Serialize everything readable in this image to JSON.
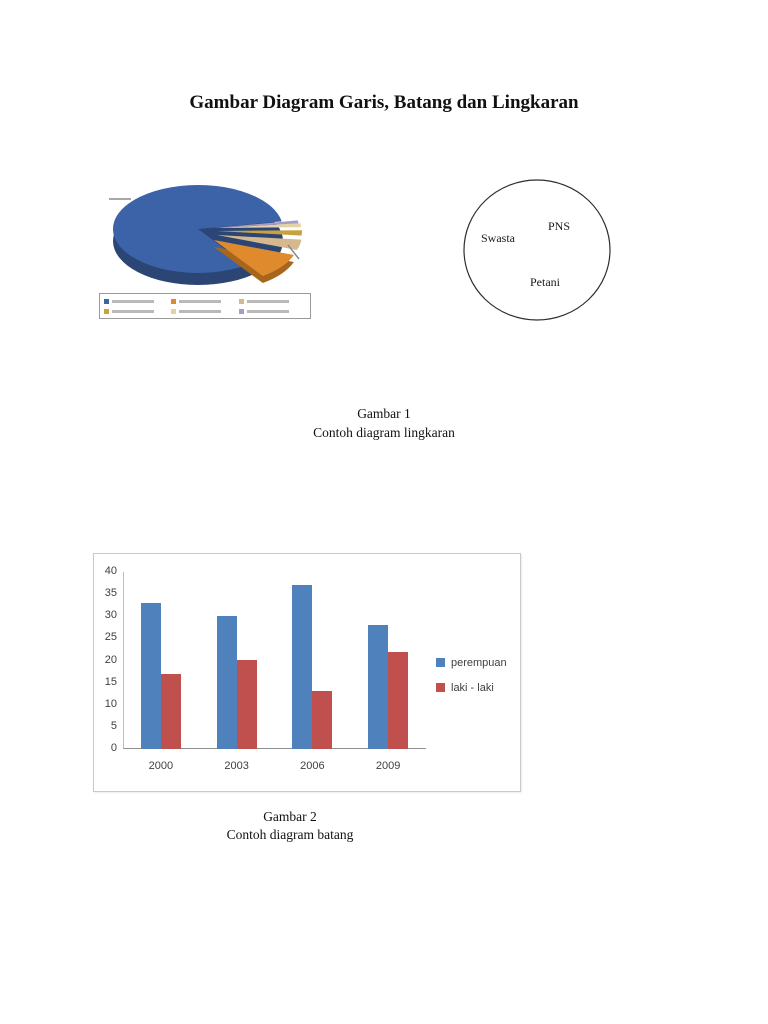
{
  "page": {
    "title": "Gambar Diagram Garis, Batang dan Lingkaran"
  },
  "figure1": {
    "caption_line1": "Gambar 1",
    "caption_line2": "Contoh diagram lingkaran",
    "venn": {
      "labels": [
        "PNS",
        "Swasta",
        "Petani"
      ]
    }
  },
  "figure2": {
    "caption_line1": "Gambar 2",
    "caption_line2": "Contoh diagram batang"
  },
  "chart_data": [
    {
      "type": "pie",
      "title": "",
      "style": "3d-exploded",
      "legend_position": "bottom",
      "slices": [
        {
          "label": "",
          "value": 76,
          "color": "#3c63a8"
        },
        {
          "label": "",
          "value": 10,
          "color": "#e08a2e"
        },
        {
          "label": "",
          "value": 5,
          "color": "#d6b88f"
        },
        {
          "label": "",
          "value": 4,
          "color": "#c9a23d"
        },
        {
          "label": "",
          "value": 3,
          "color": "#e3d3a3"
        },
        {
          "label": "",
          "value": 2,
          "color": "#a99bc9"
        }
      ]
    },
    {
      "type": "bar",
      "categories": [
        "2000",
        "2003",
        "2006",
        "2009"
      ],
      "series": [
        {
          "name": "perempuan",
          "color": "#4f81bd",
          "values": [
            33,
            30,
            37,
            28
          ]
        },
        {
          "name": "laki - laki",
          "color": "#c0504d",
          "values": [
            17,
            20,
            13,
            22
          ]
        }
      ],
      "ylim": [
        0,
        40
      ],
      "yticks": [
        0,
        5,
        10,
        15,
        20,
        25,
        30,
        35,
        40
      ],
      "xlabel": "",
      "ylabel": "",
      "legend_position": "right",
      "grid": false
    }
  ]
}
